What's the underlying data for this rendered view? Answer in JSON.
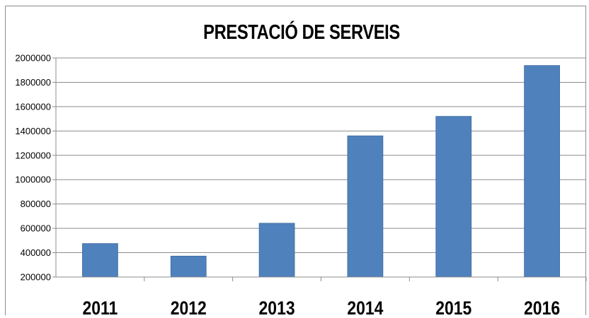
{
  "chart_data": {
    "type": "bar",
    "title": "PRESTACIÓ DE SERVEIS",
    "xlabel": "",
    "ylabel": "",
    "categories": [
      "2011",
      "2012",
      "2013",
      "2014",
      "2015",
      "2016"
    ],
    "values": [
      475000,
      372000,
      642000,
      1360000,
      1520000,
      1938000
    ],
    "ylim": [
      200000,
      2000000
    ],
    "yticks": [
      "200000",
      "400000",
      "600000",
      "800000",
      "1000000",
      "1200000",
      "1400000",
      "1600000",
      "1800000",
      "2000000"
    ],
    "grid": true,
    "bar_color": "#4f81bd"
  }
}
